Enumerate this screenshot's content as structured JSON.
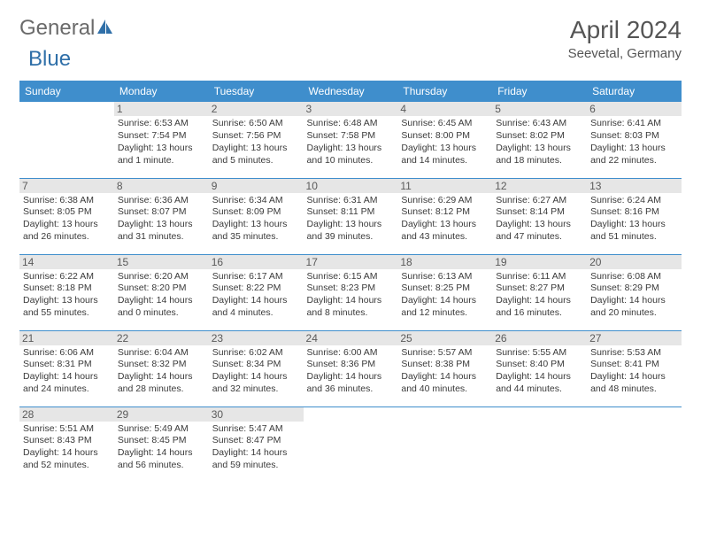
{
  "brand": {
    "part1": "General",
    "part2": "Blue",
    "logo_color": "#2f6fa8"
  },
  "title": "April 2024",
  "location": "Seevetal, Germany",
  "colors": {
    "header_bg": "#3f8ecc",
    "header_text": "#ffffff",
    "border": "#3f8ecc",
    "daynum_bg": "#e6e6e6",
    "text": "#3a3a3a"
  },
  "weekdays": [
    "Sunday",
    "Monday",
    "Tuesday",
    "Wednesday",
    "Thursday",
    "Friday",
    "Saturday"
  ],
  "weeks": [
    [
      {
        "n": "",
        "lines": []
      },
      {
        "n": "1",
        "lines": [
          "Sunrise: 6:53 AM",
          "Sunset: 7:54 PM",
          "Daylight: 13 hours and 1 minute."
        ]
      },
      {
        "n": "2",
        "lines": [
          "Sunrise: 6:50 AM",
          "Sunset: 7:56 PM",
          "Daylight: 13 hours and 5 minutes."
        ]
      },
      {
        "n": "3",
        "lines": [
          "Sunrise: 6:48 AM",
          "Sunset: 7:58 PM",
          "Daylight: 13 hours and 10 minutes."
        ]
      },
      {
        "n": "4",
        "lines": [
          "Sunrise: 6:45 AM",
          "Sunset: 8:00 PM",
          "Daylight: 13 hours and 14 minutes."
        ]
      },
      {
        "n": "5",
        "lines": [
          "Sunrise: 6:43 AM",
          "Sunset: 8:02 PM",
          "Daylight: 13 hours and 18 minutes."
        ]
      },
      {
        "n": "6",
        "lines": [
          "Sunrise: 6:41 AM",
          "Sunset: 8:03 PM",
          "Daylight: 13 hours and 22 minutes."
        ]
      }
    ],
    [
      {
        "n": "7",
        "lines": [
          "Sunrise: 6:38 AM",
          "Sunset: 8:05 PM",
          "Daylight: 13 hours and 26 minutes."
        ]
      },
      {
        "n": "8",
        "lines": [
          "Sunrise: 6:36 AM",
          "Sunset: 8:07 PM",
          "Daylight: 13 hours and 31 minutes."
        ]
      },
      {
        "n": "9",
        "lines": [
          "Sunrise: 6:34 AM",
          "Sunset: 8:09 PM",
          "Daylight: 13 hours and 35 minutes."
        ]
      },
      {
        "n": "10",
        "lines": [
          "Sunrise: 6:31 AM",
          "Sunset: 8:11 PM",
          "Daylight: 13 hours and 39 minutes."
        ]
      },
      {
        "n": "11",
        "lines": [
          "Sunrise: 6:29 AM",
          "Sunset: 8:12 PM",
          "Daylight: 13 hours and 43 minutes."
        ]
      },
      {
        "n": "12",
        "lines": [
          "Sunrise: 6:27 AM",
          "Sunset: 8:14 PM",
          "Daylight: 13 hours and 47 minutes."
        ]
      },
      {
        "n": "13",
        "lines": [
          "Sunrise: 6:24 AM",
          "Sunset: 8:16 PM",
          "Daylight: 13 hours and 51 minutes."
        ]
      }
    ],
    [
      {
        "n": "14",
        "lines": [
          "Sunrise: 6:22 AM",
          "Sunset: 8:18 PM",
          "Daylight: 13 hours and 55 minutes."
        ]
      },
      {
        "n": "15",
        "lines": [
          "Sunrise: 6:20 AM",
          "Sunset: 8:20 PM",
          "Daylight: 14 hours and 0 minutes."
        ]
      },
      {
        "n": "16",
        "lines": [
          "Sunrise: 6:17 AM",
          "Sunset: 8:22 PM",
          "Daylight: 14 hours and 4 minutes."
        ]
      },
      {
        "n": "17",
        "lines": [
          "Sunrise: 6:15 AM",
          "Sunset: 8:23 PM",
          "Daylight: 14 hours and 8 minutes."
        ]
      },
      {
        "n": "18",
        "lines": [
          "Sunrise: 6:13 AM",
          "Sunset: 8:25 PM",
          "Daylight: 14 hours and 12 minutes."
        ]
      },
      {
        "n": "19",
        "lines": [
          "Sunrise: 6:11 AM",
          "Sunset: 8:27 PM",
          "Daylight: 14 hours and 16 minutes."
        ]
      },
      {
        "n": "20",
        "lines": [
          "Sunrise: 6:08 AM",
          "Sunset: 8:29 PM",
          "Daylight: 14 hours and 20 minutes."
        ]
      }
    ],
    [
      {
        "n": "21",
        "lines": [
          "Sunrise: 6:06 AM",
          "Sunset: 8:31 PM",
          "Daylight: 14 hours and 24 minutes."
        ]
      },
      {
        "n": "22",
        "lines": [
          "Sunrise: 6:04 AM",
          "Sunset: 8:32 PM",
          "Daylight: 14 hours and 28 minutes."
        ]
      },
      {
        "n": "23",
        "lines": [
          "Sunrise: 6:02 AM",
          "Sunset: 8:34 PM",
          "Daylight: 14 hours and 32 minutes."
        ]
      },
      {
        "n": "24",
        "lines": [
          "Sunrise: 6:00 AM",
          "Sunset: 8:36 PM",
          "Daylight: 14 hours and 36 minutes."
        ]
      },
      {
        "n": "25",
        "lines": [
          "Sunrise: 5:57 AM",
          "Sunset: 8:38 PM",
          "Daylight: 14 hours and 40 minutes."
        ]
      },
      {
        "n": "26",
        "lines": [
          "Sunrise: 5:55 AM",
          "Sunset: 8:40 PM",
          "Daylight: 14 hours and 44 minutes."
        ]
      },
      {
        "n": "27",
        "lines": [
          "Sunrise: 5:53 AM",
          "Sunset: 8:41 PM",
          "Daylight: 14 hours and 48 minutes."
        ]
      }
    ],
    [
      {
        "n": "28",
        "lines": [
          "Sunrise: 5:51 AM",
          "Sunset: 8:43 PM",
          "Daylight: 14 hours and 52 minutes."
        ]
      },
      {
        "n": "29",
        "lines": [
          "Sunrise: 5:49 AM",
          "Sunset: 8:45 PM",
          "Daylight: 14 hours and 56 minutes."
        ]
      },
      {
        "n": "30",
        "lines": [
          "Sunrise: 5:47 AM",
          "Sunset: 8:47 PM",
          "Daylight: 14 hours and 59 minutes."
        ]
      },
      {
        "n": "",
        "lines": []
      },
      {
        "n": "",
        "lines": []
      },
      {
        "n": "",
        "lines": []
      },
      {
        "n": "",
        "lines": []
      }
    ]
  ]
}
